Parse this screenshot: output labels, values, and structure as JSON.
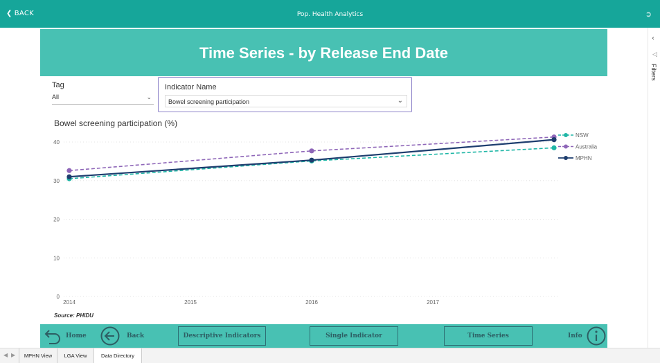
{
  "topbar": {
    "back_label": "BACK",
    "title": "Pop. Health Analytics"
  },
  "banner": {
    "title": "Time Series - by Release End Date"
  },
  "tag_slicer": {
    "label": "Tag",
    "value": "All"
  },
  "indicator_slicer": {
    "label": "Indicator Name",
    "value": "Bowel screening participation"
  },
  "chart_title": "Bowel screening participation (%)",
  "source": "Source: PHIDU",
  "chart_data": {
    "type": "line",
    "title": "Bowel screening participation (%)",
    "x": [
      2014,
      2016,
      2018
    ],
    "xticks": [
      "2014",
      "2015",
      "2016",
      "2017"
    ],
    "ylim": [
      0,
      40
    ],
    "yticks": [
      "0",
      "10",
      "20",
      "30",
      "40"
    ],
    "grid": true,
    "legend_position": "right",
    "series": [
      {
        "name": "NSW",
        "values": [
          30.5,
          35.1,
          38.5
        ],
        "color": "#1fb6a6",
        "dash": true
      },
      {
        "name": "Australia",
        "values": [
          32.6,
          37.7,
          41.3
        ],
        "color": "#8e66b8",
        "dash": true
      },
      {
        "name": "MPHN",
        "values": [
          31.0,
          35.3,
          40.6
        ],
        "color": "#1d3d6e",
        "dash": false
      }
    ]
  },
  "nav": {
    "home": "Home",
    "back": "Back",
    "descriptive": "Descriptive Indicators",
    "single": "Single Indicator",
    "timeseries": "Time Series",
    "info": "Info"
  },
  "right_pane": {
    "label": "Filters"
  },
  "tabs": [
    "MPHN View",
    "LGA View",
    "Data Directory"
  ]
}
